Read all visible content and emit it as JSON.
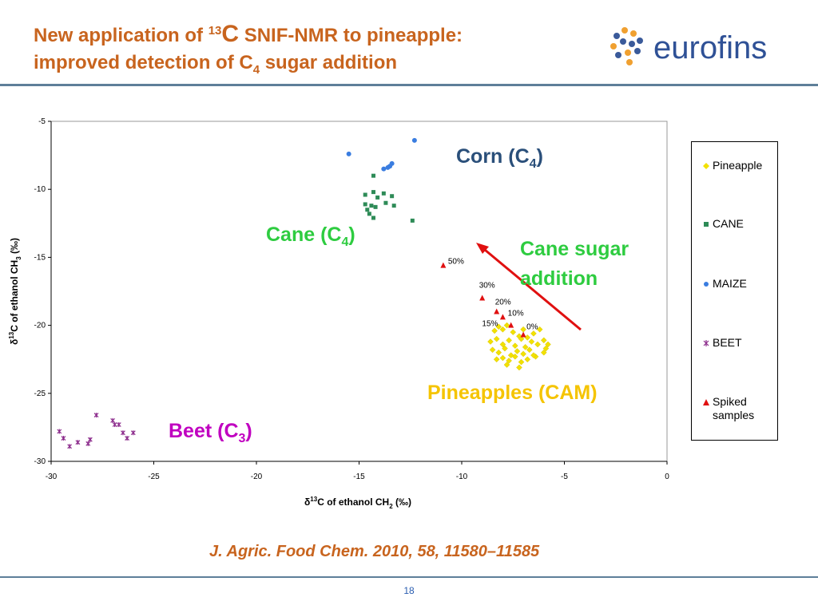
{
  "slide": {
    "title_line1_pre": "New application of ",
    "title_sup": "13",
    "title_c": "C",
    "title_line1_post": " SNIF-NMR to pineapple:",
    "title_line2_pre": "improved detection of C",
    "title_line2_sub": "4",
    "title_line2_post": " sugar addition",
    "logo_text": "eurofins",
    "citation": "J. Agric. Food Chem. 2010, 58, 11580–11585",
    "page_number": "18"
  },
  "annotations": {
    "corn": {
      "text": "Corn (C",
      "sub": "4",
      "end": ")",
      "color": "#2a4f7a"
    },
    "cane": {
      "text": "Cane (C",
      "sub": "4",
      "end": ")",
      "color": "#2ecc40"
    },
    "cane_sugar_line1": "Cane sugar",
    "cane_sugar_line2": "addition",
    "cane_sugar_color": "#2ecc40",
    "pineapples": {
      "text": "Pineapples (CAM)",
      "color": "#f5c400"
    },
    "beet": {
      "text": "Beet (C",
      "sub": "3",
      "end": ")",
      "color": "#c000c0"
    }
  },
  "colors": {
    "pineapple": "#f2e100",
    "cane": "#2e8b57",
    "maize": "#3a7de0",
    "beet": "#8b2a8b",
    "spiked": "#e01010",
    "arrow": "#e01010"
  },
  "chart_data": {
    "type": "scatter",
    "xlabel_pre": "δ",
    "xlabel_sup": "13",
    "xlabel_mid": "C of ethanol CH",
    "xlabel_sub": "2",
    "xlabel_post": " (‰)",
    "ylabel_pre": "δ",
    "ylabel_sup": "13",
    "ylabel_mid": "C of ethanol CH",
    "ylabel_sub": "3",
    "ylabel_post": " (‰)",
    "xlim": [
      -30,
      0
    ],
    "ylim": [
      -30,
      -5
    ],
    "xticks": [
      "-30",
      "-25",
      "-20",
      "-15",
      "-10",
      "-5",
      "0"
    ],
    "yticks": [
      "-5",
      "-10",
      "-15",
      "-20",
      "-25",
      "-30"
    ],
    "legend_position": "right",
    "series": [
      {
        "name": "Pineapple",
        "marker": "diamond",
        "color": "#f2e100",
        "points": [
          [
            -8.4,
            -20.4
          ],
          [
            -8.2,
            -20.1
          ],
          [
            -8.0,
            -20.3
          ],
          [
            -7.8,
            -20.0
          ],
          [
            -7.5,
            -20.5
          ],
          [
            -7.2,
            -20.8
          ],
          [
            -7.0,
            -20.3
          ],
          [
            -6.8,
            -20.9
          ],
          [
            -6.5,
            -20.6
          ],
          [
            -6.2,
            -20.3
          ],
          [
            -8.6,
            -21.2
          ],
          [
            -8.3,
            -21.0
          ],
          [
            -8.0,
            -21.4
          ],
          [
            -7.7,
            -21.1
          ],
          [
            -7.4,
            -21.5
          ],
          [
            -7.1,
            -21.0
          ],
          [
            -6.9,
            -21.6
          ],
          [
            -6.6,
            -21.2
          ],
          [
            -6.3,
            -21.4
          ],
          [
            -6.0,
            -21.1
          ],
          [
            -8.5,
            -21.8
          ],
          [
            -8.2,
            -22.0
          ],
          [
            -7.9,
            -21.7
          ],
          [
            -7.6,
            -22.2
          ],
          [
            -7.3,
            -21.9
          ],
          [
            -7.0,
            -22.1
          ],
          [
            -6.7,
            -21.8
          ],
          [
            -6.4,
            -22.3
          ],
          [
            -5.9,
            -21.7
          ],
          [
            -5.8,
            -21.4
          ],
          [
            -8.3,
            -22.5
          ],
          [
            -8.0,
            -22.4
          ],
          [
            -7.7,
            -22.6
          ],
          [
            -7.4,
            -22.3
          ],
          [
            -7.1,
            -22.7
          ],
          [
            -6.8,
            -22.5
          ],
          [
            -6.5,
            -22.2
          ],
          [
            -7.2,
            -23.1
          ],
          [
            -6.0,
            -22.0
          ],
          [
            -7.8,
            -22.9
          ]
        ]
      },
      {
        "name": "CANE",
        "marker": "square",
        "color": "#2e8b57",
        "points": [
          [
            -14.3,
            -9.0
          ],
          [
            -14.3,
            -10.2
          ],
          [
            -14.7,
            -10.4
          ],
          [
            -13.8,
            -10.3
          ],
          [
            -13.4,
            -10.5
          ],
          [
            -14.1,
            -10.6
          ],
          [
            -14.7,
            -11.1
          ],
          [
            -14.4,
            -11.2
          ],
          [
            -14.2,
            -11.3
          ],
          [
            -13.7,
            -11.0
          ],
          [
            -13.3,
            -11.2
          ],
          [
            -14.6,
            -11.5
          ],
          [
            -14.5,
            -11.8
          ],
          [
            -14.3,
            -12.1
          ],
          [
            -12.4,
            -12.3
          ]
        ]
      },
      {
        "name": "MAIZE",
        "marker": "circle",
        "color": "#3a7de0",
        "points": [
          [
            -15.5,
            -7.4
          ],
          [
            -12.3,
            -6.4
          ],
          [
            -13.4,
            -8.1
          ],
          [
            -13.6,
            -8.4
          ],
          [
            -13.8,
            -8.5
          ],
          [
            -13.5,
            -8.3
          ]
        ]
      },
      {
        "name": "BEET",
        "marker": "star",
        "color": "#8b2a8b",
        "points": [
          [
            -29.6,
            -27.8
          ],
          [
            -29.4,
            -28.3
          ],
          [
            -29.1,
            -28.9
          ],
          [
            -28.7,
            -28.6
          ],
          [
            -28.2,
            -28.7
          ],
          [
            -28.1,
            -28.4
          ],
          [
            -27.8,
            -26.6
          ],
          [
            -27.0,
            -27.0
          ],
          [
            -26.9,
            -27.3
          ],
          [
            -26.7,
            -27.3
          ],
          [
            -26.5,
            -27.9
          ],
          [
            -26.3,
            -28.3
          ],
          [
            -26.0,
            -27.9
          ]
        ]
      },
      {
        "name": "Spiked samples",
        "marker": "triangle",
        "color": "#e01010",
        "points": [
          [
            -10.9,
            -15.6,
            "50%"
          ],
          [
            -9.0,
            -18.0,
            "30%"
          ],
          [
            -8.3,
            -19.0,
            "20%"
          ],
          [
            -8.0,
            -19.4,
            "15%"
          ],
          [
            -7.6,
            -20.0,
            "10%"
          ],
          [
            -7.0,
            -20.7,
            "0%"
          ]
        ]
      }
    ],
    "legend_lines": {
      "pineapple": "Pineapple",
      "cane": "CANE",
      "maize": "MAIZE",
      "beet": "BEET",
      "spiked_1": "Spiked",
      "spiked_2": "samples"
    }
  }
}
